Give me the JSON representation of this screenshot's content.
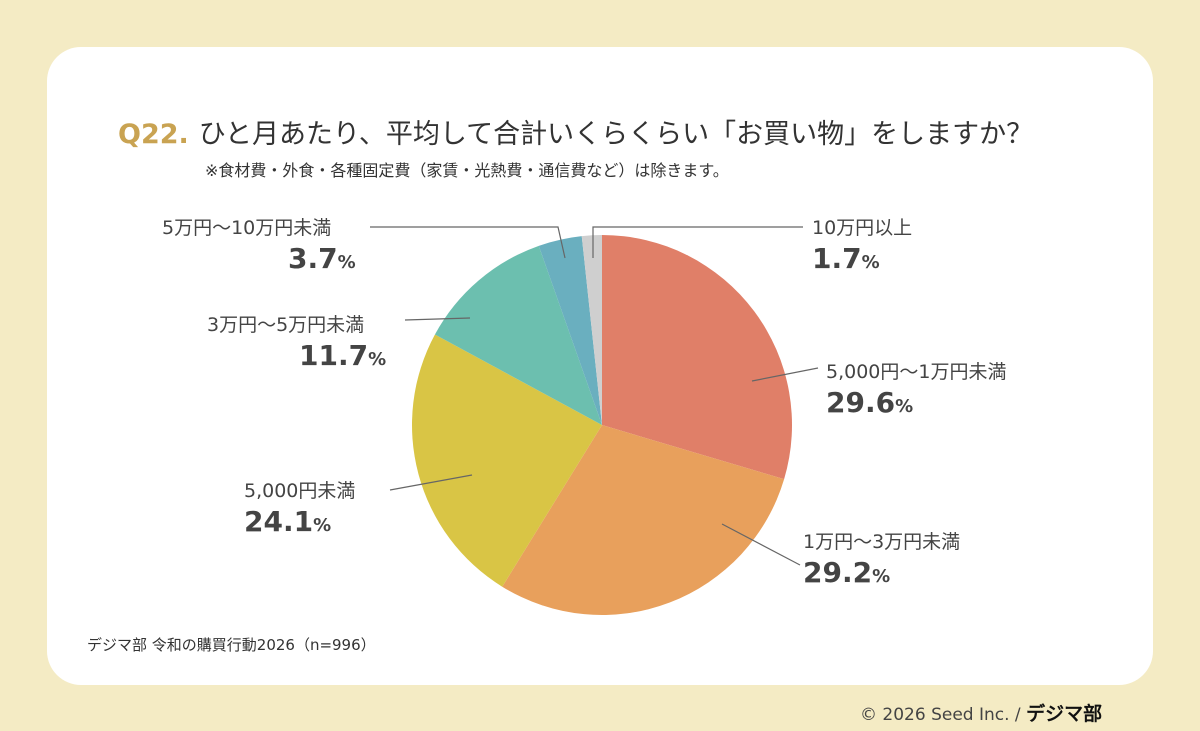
{
  "title": {
    "qnum": "Q22.",
    "text": "ひと月あたり、平均して合計いくらくらい「お買い物」をしますか？",
    "note": "※食材費・外食・各種固定費（家賃・光熱費・通信費など）は除きます。"
  },
  "source": "デジマ部 令和の購買行動2026（n=996）",
  "footer": {
    "copyright": "© 2026 Seed Inc. /",
    "logo": "デジマ部"
  },
  "chart_data": {
    "type": "pie",
    "unit": "%",
    "start": "top",
    "direction": "clockwise",
    "categories": [
      "5,000円〜1万円未満",
      "1万円〜3万円未満",
      "5,000円未満",
      "3万円〜5万円未満",
      "5万円〜10万円未満",
      "10万円以上"
    ],
    "values": [
      29.6,
      29.2,
      24.1,
      11.7,
      3.7,
      1.7
    ],
    "colors": [
      "#E07F68",
      "#E8A05C",
      "#D9C545",
      "#6CBFAF",
      "#6AAFBF",
      "#CFCFCF"
    ]
  }
}
